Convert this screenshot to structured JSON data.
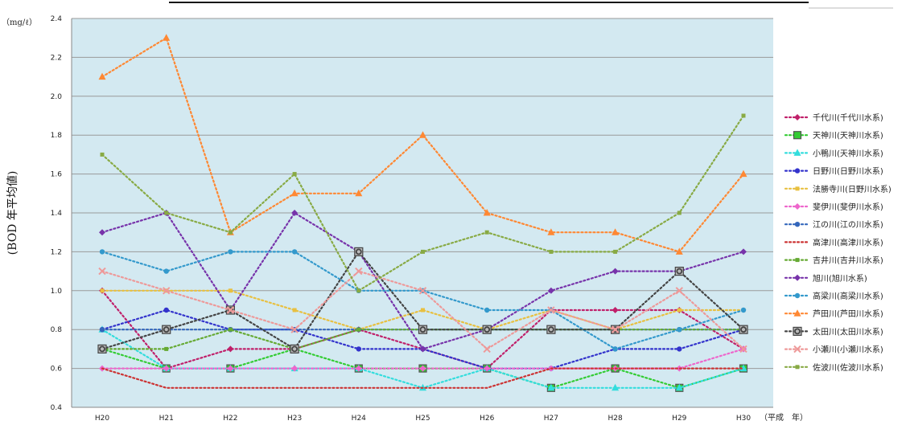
{
  "chart_data": {
    "type": "line",
    "title": "",
    "xlabel": "",
    "ylabel": "(BOD 年平均値)",
    "y_unit": "（mg/ℓ）",
    "x_unit": "（平成　年）",
    "ylim": [
      0.4,
      2.4
    ],
    "y_ticks": [
      "0.4",
      "0.6",
      "0.8",
      "1.0",
      "1.2",
      "1.4",
      "1.6",
      "1.8",
      "2.0",
      "2.2",
      "2.4"
    ],
    "categories": [
      "H20",
      "H21",
      "H22",
      "H23",
      "H24",
      "H25",
      "H26",
      "H27",
      "H28",
      "H29",
      "H30"
    ],
    "grid": true,
    "legend_position": "right",
    "series": [
      {
        "name": "千代川(千代川水系)",
        "color": "#c0206a",
        "marker": "diamond",
        "values": [
          1.0,
          0.6,
          0.7,
          0.7,
          0.8,
          0.7,
          0.6,
          0.9,
          0.9,
          0.9,
          0.7
        ]
      },
      {
        "name": "天神川(天神川水系)",
        "color": "#33cc33",
        "marker": "square",
        "values": [
          0.7,
          0.6,
          0.6,
          0.7,
          0.6,
          0.6,
          0.6,
          0.5,
          0.6,
          0.5,
          0.6
        ]
      },
      {
        "name": "小鴨川(天神川水系)",
        "color": "#33dddd",
        "marker": "triangle",
        "values": [
          0.8,
          0.6,
          0.6,
          0.6,
          0.6,
          0.5,
          0.6,
          0.5,
          0.5,
          0.5,
          0.6
        ]
      },
      {
        "name": "日野川(日野川水系)",
        "color": "#3333cc",
        "marker": "circle",
        "values": [
          0.8,
          0.9,
          0.8,
          0.8,
          0.7,
          0.7,
          0.6,
          0.6,
          0.7,
          0.7,
          0.8
        ]
      },
      {
        "name": "法勝寺川(日野川水系)",
        "color": "#e8c040",
        "marker": "small-square",
        "values": [
          1.0,
          1.0,
          1.0,
          0.9,
          0.8,
          0.9,
          0.8,
          0.9,
          0.8,
          0.9,
          0.9
        ]
      },
      {
        "name": "斐伊川(斐伊川水系)",
        "color": "#ee66cc",
        "marker": "diamond",
        "values": [
          0.6,
          0.6,
          0.6,
          0.6,
          0.6,
          0.6,
          0.6,
          0.6,
          0.6,
          0.6,
          0.7
        ]
      },
      {
        "name": "江の川(江の川水系)",
        "color": "#3366bb",
        "marker": "circle",
        "values": [
          0.8,
          0.8,
          0.8,
          0.8,
          0.8,
          0.8,
          0.8,
          0.8,
          0.8,
          0.8,
          0.8
        ]
      },
      {
        "name": "高津川(高津川水系)",
        "color": "#cc3333",
        "marker": "none",
        "values": [
          0.6,
          0.5,
          0.5,
          0.5,
          0.5,
          0.5,
          0.5,
          0.6,
          0.6,
          0.6,
          0.6
        ]
      },
      {
        "name": "吉井川(吉井川水系)",
        "color": "#66aa33",
        "marker": "small-square",
        "values": [
          0.7,
          0.7,
          0.8,
          0.7,
          0.8,
          0.8,
          0.8,
          0.8,
          0.8,
          0.8,
          0.8
        ]
      },
      {
        "name": "旭川(旭川水系)",
        "color": "#7733aa",
        "marker": "diamond",
        "values": [
          1.3,
          1.4,
          0.9,
          1.4,
          1.2,
          0.7,
          0.8,
          1.0,
          1.1,
          1.1,
          1.2
        ]
      },
      {
        "name": "高梁川(高梁川水系)",
        "color": "#3399cc",
        "marker": "circle",
        "values": [
          1.2,
          1.1,
          1.2,
          1.2,
          1.0,
          1.0,
          0.9,
          0.9,
          0.7,
          0.8,
          0.9
        ]
      },
      {
        "name": "芦田川(芦田川水系)",
        "color": "#ff8833",
        "marker": "triangle",
        "values": [
          2.1,
          2.3,
          1.3,
          1.5,
          1.5,
          1.8,
          1.4,
          1.3,
          1.3,
          1.2,
          1.6
        ]
      },
      {
        "name": "太田川(太田川水系)",
        "color": "#444444",
        "marker": "circle-square",
        "values": [
          0.7,
          0.8,
          0.9,
          0.7,
          1.2,
          0.8,
          0.8,
          0.8,
          0.8,
          1.1,
          0.8
        ]
      },
      {
        "name": "小瀬川(小瀬川水系)",
        "color": "#ee9999",
        "marker": "x",
        "values": [
          1.1,
          1.0,
          0.9,
          0.8,
          1.1,
          1.0,
          0.7,
          0.9,
          0.8,
          1.0,
          0.7
        ]
      },
      {
        "name": "佐波川(佐波川水系)",
        "color": "#88aa44",
        "marker": "small-square",
        "values": [
          1.7,
          1.4,
          1.3,
          1.6,
          1.0,
          1.2,
          1.3,
          1.2,
          1.2,
          1.4,
          1.9
        ]
      }
    ]
  }
}
